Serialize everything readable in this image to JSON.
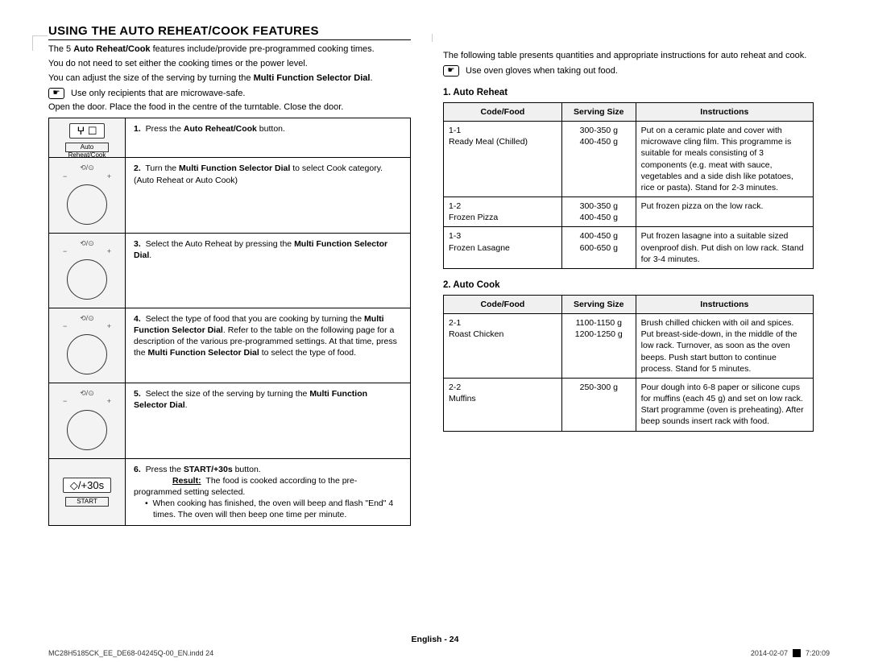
{
  "title": "USING THE AUTO REHEAT/COOK FEATURES",
  "intro": {
    "l1a": "The 5 ",
    "l1b": "Auto Reheat/Cook",
    "l1c": " features include/provide pre-programmed cooking times.",
    "l2": "You do not need to set either the cooking times or the power level.",
    "l3a": "You can adjust the size of the serving by turning the ",
    "l3b": "Multi Function Selector Dial",
    "l3c": "."
  },
  "note1": "Use only recipients that are microwave-safe.",
  "open_door": "Open the door. Place the food in the centre of the turntable. Close the door.",
  "steps": [
    {
      "icon": "btn_auto",
      "icon_label": "Auto Reheat/Cook",
      "n": "1.",
      "t1": "Press the ",
      "b1": "Auto Reheat/Cook",
      "t2": " button."
    },
    {
      "icon": "dial",
      "n": "2.",
      "t1": "Turn the ",
      "b1": "Multi Function Selector Dial",
      "t2": " to select Cook category. (Auto Reheat or Auto Cook)"
    },
    {
      "icon": "dial",
      "n": "3.",
      "t1": "Select the Auto Reheat by pressing the ",
      "b1": "Multi Function Selector Dial",
      "t2": "."
    },
    {
      "icon": "dial",
      "n": "4.",
      "t1": "Select the type of food that you are cooking by turning the ",
      "b1": "Multi Function Selector Dial",
      "t2": ". Refer to the table on the following page for a description of the various pre-programmed settings. At that time, press the ",
      "b2": "Multi Function Selector Dial",
      "t3": " to select the type of food."
    },
    {
      "icon": "dial",
      "n": "5.",
      "t1": "Select the size of the serving by turning the ",
      "b1": "Multi Function Selector Dial",
      "t2": "."
    },
    {
      "icon": "btn_start",
      "icon_label": "START",
      "n": "6.",
      "t1": "Press the ",
      "b1": "START/+30s",
      "t2": " button.",
      "result_label": "Result:",
      "result": "The food is cooked according to the pre-programmed setting selected.",
      "bullet": "When cooking has finished, the oven will beep and flash \"End\" 4 times. The oven will then beep one time per minute."
    }
  ],
  "right_intro": "The following table presents quantities and appropriate instructions for auto reheat and cook.",
  "note2": "Use oven gloves when taking out food.",
  "tables": {
    "reheat": {
      "title": "1. Auto Reheat",
      "headers": [
        "Code/Food",
        "Serving Size",
        "Instructions"
      ],
      "rows": [
        {
          "code": "1-1",
          "food": "Ready Meal (Chilled)",
          "size": "300-350 g\n400-450 g",
          "instr": "Put on a ceramic plate and cover with microwave cling film. This programme is suitable for meals consisting of 3 components (e.g. meat with sauce, vegetables and a side dish like potatoes, rice or pasta). Stand for 2-3 minutes."
        },
        {
          "code": "1-2",
          "food": "Frozen Pizza",
          "size": "300-350 g\n400-450 g",
          "instr": "Put frozen pizza on the low rack."
        },
        {
          "code": "1-3",
          "food": "Frozen Lasagne",
          "size": "400-450 g\n600-650 g",
          "instr": "Put frozen lasagne into a suitable sized ovenproof dish. Put dish on low rack. Stand for 3-4 minutes."
        }
      ]
    },
    "cook": {
      "title": "2. Auto Cook",
      "headers": [
        "Code/Food",
        "Serving Size",
        "Instructions"
      ],
      "rows": [
        {
          "code": "2-1",
          "food": "Roast Chicken",
          "size": "1100-1150 g\n1200-1250 g",
          "instr": "Brush chilled chicken with oil and spices. Put breast-side-down, in the middle of the low rack. Turnover, as soon as the oven beeps. Push start button to continue process. Stand for 5 minutes."
        },
        {
          "code": "2-2",
          "food": "Muffins",
          "size": "250-300 g",
          "instr": "Pour dough into 6-8 paper or silicone cups for muffins (each 45 g) and set on low rack. Start programme (oven is preheating). After beep sounds insert rack with food."
        }
      ]
    }
  },
  "footer": {
    "lang": "English - 24",
    "file": "MC28H5185CK_EE_DE68-04245Q-00_EN.indd   24",
    "date": "2014-02-07",
    "time": "7:20:09"
  }
}
